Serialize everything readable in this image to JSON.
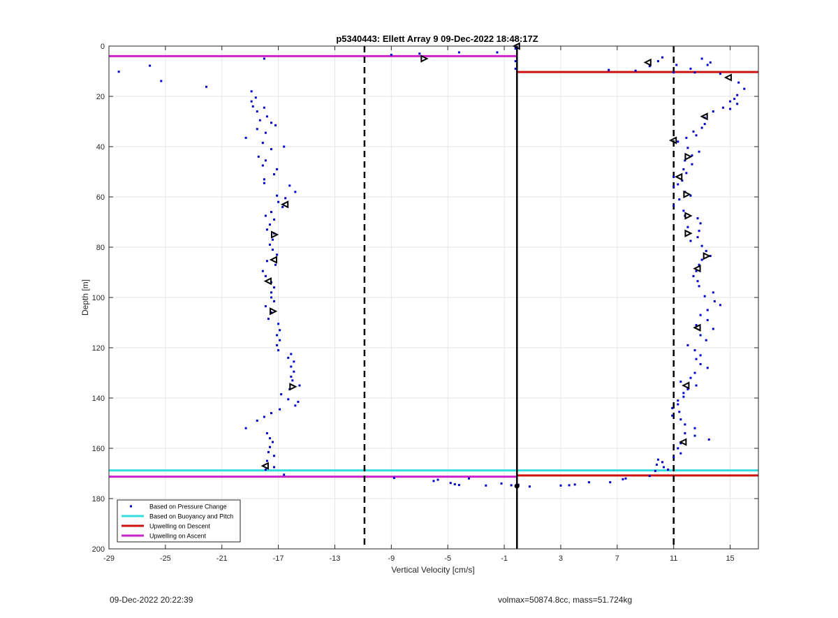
{
  "chart_data": {
    "type": "scatter",
    "title": "p5340443: Ellett Array 9 09-Dec-2022 18:48:17Z",
    "xlabel": "Vertical Velocity [cm/s]",
    "ylabel": "Depth [m]",
    "xlim": [
      -29,
      17
    ],
    "ylim": [
      0,
      200
    ],
    "y_reversed": true,
    "grid": true,
    "x_ticks": [
      -29,
      -25,
      -21,
      -17,
      -13,
      -9,
      -5,
      -1,
      3,
      7,
      11,
      15
    ],
    "y_ticks": [
      0,
      20,
      40,
      60,
      80,
      100,
      120,
      140,
      160,
      180,
      200
    ],
    "legend_position": "bottom-left",
    "legend": [
      {
        "label": "Based on Pressure Change",
        "color": "#0000cc",
        "kind": "dot"
      },
      {
        "label": "Based on Buoyancy and Pitch",
        "color": "#33dddd",
        "kind": "line"
      },
      {
        "label": "Upwelling on Descent",
        "color": "#cc1111",
        "kind": "line"
      },
      {
        "label": "Upwelling on Ascent",
        "color": "#cc22cc",
        "kind": "line"
      }
    ],
    "vlines": [
      {
        "x": -10.9,
        "style": "dashed",
        "color": "#000000"
      },
      {
        "x": 11,
        "style": "dashed",
        "color": "#000000"
      },
      {
        "x": -0.1,
        "style": "solid",
        "color": "#000000"
      }
    ],
    "hlines": [
      {
        "name": "Based on Buoyancy and Pitch",
        "y": 168.8,
        "x0": -29,
        "x1": 17,
        "color": "#33dddd"
      },
      {
        "name": "Upwelling on Descent",
        "y": 10.3,
        "x0": -0.1,
        "x1": 17,
        "color": "#cc1111"
      },
      {
        "name": "Upwelling on Descent",
        "y": 170.8,
        "x0": -0.1,
        "x1": 17,
        "color": "#cc1111"
      },
      {
        "name": "Upwelling on Ascent",
        "y": 4.0,
        "x0": -29,
        "x1": -0.1,
        "color": "#cc22cc"
      },
      {
        "name": "Upwelling on Ascent",
        "y": 171.3,
        "x0": -29,
        "x1": -0.1,
        "color": "#cc22cc"
      }
    ],
    "series": [
      {
        "name": "Based on Pressure Change",
        "color": "#0000cc",
        "points": [
          [
            -28.3,
            10.2
          ],
          [
            -26.1,
            7.8
          ],
          [
            -25.3,
            13.9
          ],
          [
            -22.1,
            16.2
          ],
          [
            -18.0,
            5.0
          ],
          [
            -18.9,
            18.0
          ],
          [
            -18.6,
            20.5
          ],
          [
            -18.9,
            22.0
          ],
          [
            -18.8,
            24.0
          ],
          [
            -18.0,
            24.5
          ],
          [
            -18.5,
            26.0
          ],
          [
            -17.8,
            28.0
          ],
          [
            -18.3,
            29.5
          ],
          [
            -17.5,
            30.5
          ],
          [
            -17.2,
            31.5
          ],
          [
            -18.5,
            33.0
          ],
          [
            -17.9,
            34.5
          ],
          [
            -19.3,
            36.5
          ],
          [
            -18.1,
            38.5
          ],
          [
            -16.6,
            40.0
          ],
          [
            -17.5,
            41.0
          ],
          [
            -18.4,
            44.0
          ],
          [
            -17.9,
            45.5
          ],
          [
            -18.1,
            47.5
          ],
          [
            -17.1,
            49.0
          ],
          [
            -17.3,
            51.0
          ],
          [
            -18.0,
            53.0
          ],
          [
            -18.0,
            54.5
          ],
          [
            -16.2,
            55.5
          ],
          [
            -15.8,
            58.0
          ],
          [
            -17.1,
            59.5
          ],
          [
            -16.5,
            60.5
          ],
          [
            -17.0,
            62.0
          ],
          [
            -16.7,
            64.0
          ],
          [
            -17.5,
            66.0
          ],
          [
            -17.9,
            67.5
          ],
          [
            -17.3,
            69.0
          ],
          [
            -17.6,
            71.0
          ],
          [
            -17.8,
            73.0
          ],
          [
            -17.3,
            74.5
          ],
          [
            -17.4,
            77.0
          ],
          [
            -17.6,
            79.0
          ],
          [
            -17.4,
            81.0
          ],
          [
            -17.1,
            83.0
          ],
          [
            -17.8,
            85.5
          ],
          [
            -17.2,
            87.0
          ],
          [
            -18.1,
            89.5
          ],
          [
            -17.9,
            91.5
          ],
          [
            -17.5,
            94.0
          ],
          [
            -17.3,
            96.0
          ],
          [
            -17.5,
            98.0
          ],
          [
            -17.5,
            100.0
          ],
          [
            -17.3,
            101.5
          ],
          [
            -17.9,
            103.5
          ],
          [
            -17.5,
            106.0
          ],
          [
            -17.7,
            108.5
          ],
          [
            -17.0,
            110.5
          ],
          [
            -16.9,
            113.0
          ],
          [
            -17.1,
            115.0
          ],
          [
            -16.9,
            117.0
          ],
          [
            -17.1,
            119.0
          ],
          [
            -17.0,
            121.0
          ],
          [
            -16.1,
            122.5
          ],
          [
            -16.3,
            124.0
          ],
          [
            -15.9,
            125.5
          ],
          [
            -16.1,
            127.5
          ],
          [
            -15.9,
            129.5
          ],
          [
            -16.1,
            131.5
          ],
          [
            -16.0,
            133.0
          ],
          [
            -15.5,
            135.0
          ],
          [
            -16.2,
            136.5
          ],
          [
            -16.8,
            138.5
          ],
          [
            -16.3,
            140.5
          ],
          [
            -15.6,
            141.5
          ],
          [
            -15.8,
            143.0
          ],
          [
            -16.9,
            144.5
          ],
          [
            -17.5,
            146.0
          ],
          [
            -18.0,
            147.5
          ],
          [
            -18.5,
            149.0
          ],
          [
            -19.3,
            152.0
          ],
          [
            -17.8,
            154.0
          ],
          [
            -17.6,
            156.0
          ],
          [
            -17.4,
            157.5
          ],
          [
            -17.6,
            159.5
          ],
          [
            -17.7,
            161.5
          ],
          [
            -17.3,
            163.0
          ],
          [
            -17.8,
            165.0
          ],
          [
            -17.3,
            167.5
          ],
          [
            -17.9,
            168.5
          ],
          [
            -16.6,
            170.5
          ],
          [
            -9.0,
            3.5
          ],
          [
            -7.0,
            3.0
          ],
          [
            -4.2,
            2.5
          ],
          [
            -1.5,
            2.5
          ],
          [
            -0.2,
            1.0
          ],
          [
            -0.2,
            6.0
          ],
          [
            -0.2,
            9.0
          ],
          [
            -8.8,
            171.8
          ],
          [
            -6.0,
            173.0
          ],
          [
            -5.7,
            172.5
          ],
          [
            -4.8,
            173.8
          ],
          [
            -4.5,
            174.3
          ],
          [
            -4.2,
            174.6
          ],
          [
            -3.5,
            172.0
          ],
          [
            -2.3,
            174.8
          ],
          [
            -1.2,
            174.0
          ],
          [
            -0.5,
            174.7
          ],
          [
            -0.2,
            175.0
          ],
          [
            0.0,
            174.5
          ],
          [
            0.8,
            175.2
          ],
          [
            3.0,
            174.8
          ],
          [
            3.6,
            174.7
          ],
          [
            4.0,
            174.4
          ],
          [
            5.0,
            173.5
          ],
          [
            6.5,
            173.5
          ],
          [
            7.4,
            172.3
          ],
          [
            7.6,
            172.0
          ],
          [
            9.3,
            171.0
          ],
          [
            6.4,
            9.5
          ],
          [
            8.3,
            9.8
          ],
          [
            9.3,
            8.0
          ],
          [
            9.9,
            6.0
          ],
          [
            10.2,
            4.5
          ],
          [
            11.0,
            10.5
          ],
          [
            11.2,
            7.5
          ],
          [
            12.2,
            9.0
          ],
          [
            12.5,
            10.5
          ],
          [
            13.0,
            5.0
          ],
          [
            13.6,
            6.5
          ],
          [
            13.4,
            7.5
          ],
          [
            14.3,
            11.0
          ],
          [
            15.6,
            14.5
          ],
          [
            16.0,
            17.0
          ],
          [
            15.5,
            19.5
          ],
          [
            15.3,
            21.0
          ],
          [
            15.0,
            22.0
          ],
          [
            15.5,
            23.0
          ],
          [
            14.5,
            24.5
          ],
          [
            15.0,
            25.0
          ],
          [
            13.8,
            26.0
          ],
          [
            13.2,
            28.5
          ],
          [
            13.2,
            31.0
          ],
          [
            13.0,
            32.5
          ],
          [
            12.4,
            34.0
          ],
          [
            12.6,
            35.5
          ],
          [
            11.9,
            36.5
          ],
          [
            11.3,
            38.0
          ],
          [
            12.0,
            40.5
          ],
          [
            12.8,
            42.0
          ],
          [
            12.3,
            43.5
          ],
          [
            11.8,
            45.5
          ],
          [
            12.3,
            47.0
          ],
          [
            11.7,
            49.0
          ],
          [
            11.9,
            50.5
          ],
          [
            11.0,
            52.0
          ],
          [
            11.6,
            53.5
          ],
          [
            11.3,
            55.0
          ],
          [
            11.0,
            56.0
          ],
          [
            11.8,
            58.0
          ],
          [
            12.2,
            59.5
          ],
          [
            11.4,
            61.0
          ],
          [
            11.0,
            63.5
          ],
          [
            11.7,
            65.5
          ],
          [
            11.8,
            67.5
          ],
          [
            12.7,
            68.5
          ],
          [
            12.9,
            70.5
          ],
          [
            12.0,
            72.0
          ],
          [
            12.8,
            73.5
          ],
          [
            12.7,
            76.0
          ],
          [
            12.2,
            77.5
          ],
          [
            13.0,
            79.5
          ],
          [
            13.3,
            81.5
          ],
          [
            13.6,
            83.5
          ],
          [
            13.0,
            85.0
          ],
          [
            12.8,
            87.0
          ],
          [
            12.6,
            89.5
          ],
          [
            12.4,
            91.5
          ],
          [
            12.7,
            93.5
          ],
          [
            12.8,
            95.5
          ],
          [
            13.8,
            98.0
          ],
          [
            13.2,
            99.5
          ],
          [
            13.9,
            101.5
          ],
          [
            14.3,
            103.0
          ],
          [
            13.4,
            105.0
          ],
          [
            12.9,
            107.0
          ],
          [
            13.4,
            109.0
          ],
          [
            12.6,
            111.0
          ],
          [
            13.8,
            112.5
          ],
          [
            12.9,
            115.0
          ],
          [
            13.3,
            117.0
          ],
          [
            12.0,
            119.0
          ],
          [
            12.5,
            121.0
          ],
          [
            12.9,
            123.0
          ],
          [
            12.6,
            124.5
          ],
          [
            12.9,
            126.5
          ],
          [
            13.4,
            128.0
          ],
          [
            12.5,
            130.0
          ],
          [
            12.2,
            132.0
          ],
          [
            11.5,
            133.5
          ],
          [
            12.6,
            135.0
          ],
          [
            12.0,
            136.5
          ],
          [
            11.7,
            138.0
          ],
          [
            11.7,
            139.5
          ],
          [
            11.3,
            141.0
          ],
          [
            11.3,
            142.5
          ],
          [
            10.9,
            144.0
          ],
          [
            11.4,
            145.5
          ],
          [
            10.9,
            147.0
          ],
          [
            11.5,
            148.5
          ],
          [
            11.8,
            150.5
          ],
          [
            12.5,
            152.0
          ],
          [
            11.8,
            154.0
          ],
          [
            12.5,
            155.0
          ],
          [
            13.5,
            156.5
          ],
          [
            11.5,
            158.0
          ],
          [
            11.3,
            160.0
          ],
          [
            11.5,
            162.0
          ],
          [
            11.0,
            163.5
          ],
          [
            9.9,
            164.5
          ],
          [
            10.2,
            165.5
          ],
          [
            9.8,
            166.5
          ],
          [
            10.3,
            167.5
          ],
          [
            9.7,
            169.0
          ],
          [
            10.6,
            168.5
          ]
        ]
      }
    ],
    "markers": [
      {
        "x": -0.1,
        "y": 0,
        "shape": "triangle-left"
      },
      {
        "x": -6.7,
        "y": 5.0,
        "shape": "triangle-right"
      },
      {
        "x": 9.2,
        "y": 6.5,
        "shape": "triangle-left"
      },
      {
        "x": 14.9,
        "y": 12.5,
        "shape": "triangle-left"
      },
      {
        "x": 13.2,
        "y": 28.0,
        "shape": "triangle-left"
      },
      {
        "x": 11.0,
        "y": 37.5,
        "shape": "triangle-left"
      },
      {
        "x": 12.0,
        "y": 44.0,
        "shape": "triangle-right"
      },
      {
        "x": 11.4,
        "y": 52.0,
        "shape": "triangle-left"
      },
      {
        "x": 11.9,
        "y": 59.0,
        "shape": "triangle-right"
      },
      {
        "x": 12.0,
        "y": 67.5,
        "shape": "triangle-right"
      },
      {
        "x": 12.0,
        "y": 74.5,
        "shape": "triangle-right"
      },
      {
        "x": 13.3,
        "y": 83.5,
        "shape": "triangle-right"
      },
      {
        "x": 12.7,
        "y": 88.5,
        "shape": "triangle-left"
      },
      {
        "x": 12.7,
        "y": 112.0,
        "shape": "triangle-left"
      },
      {
        "x": 11.9,
        "y": 135.0,
        "shape": "triangle-left"
      },
      {
        "x": 11.7,
        "y": 157.5,
        "shape": "triangle-left"
      },
      {
        "x": -16.5,
        "y": 63.0,
        "shape": "triangle-left"
      },
      {
        "x": -17.3,
        "y": 75.0,
        "shape": "triangle-right"
      },
      {
        "x": -17.3,
        "y": 85.0,
        "shape": "triangle-left"
      },
      {
        "x": -17.7,
        "y": 93.5,
        "shape": "triangle-left"
      },
      {
        "x": -17.4,
        "y": 105.5,
        "shape": "triangle-right"
      },
      {
        "x": -16.0,
        "y": 135.5,
        "shape": "triangle-right"
      },
      {
        "x": -17.9,
        "y": 167.0,
        "shape": "triangle-left"
      },
      {
        "x": -0.1,
        "y": 175.0,
        "shape": "circle"
      }
    ]
  },
  "footer": {
    "timestamp": "09-Dec-2022 20:22:39",
    "info": "volmax=50874.8cc, mass=51.724kg"
  }
}
